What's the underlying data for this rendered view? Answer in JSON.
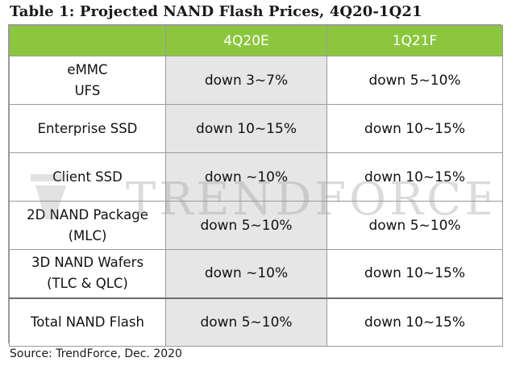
{
  "title": "Table 1: Projected NAND Flash Prices, 4Q20-1Q21",
  "table": {
    "headers": [
      "",
      "4Q20E",
      "1Q21F"
    ],
    "rows": [
      {
        "label_lines": [
          "eMMC",
          "UFS"
        ],
        "q4": "down 3~7%",
        "q1": "down 5~10%"
      },
      {
        "label_lines": [
          "Enterprise SSD"
        ],
        "q4": "down 10~15%",
        "q1": "down 10~15%"
      },
      {
        "label_lines": [
          "Client SSD"
        ],
        "q4": "down ~10%",
        "q1": "down 10~15%"
      },
      {
        "label_lines": [
          "2D NAND Package",
          "(MLC)"
        ],
        "q4": "down 5~10%",
        "q1": "down 5~10%"
      },
      {
        "label_lines": [
          "3D NAND Wafers",
          "(TLC & QLC)"
        ],
        "q4": "down ~10%",
        "q1": "down 10~15%"
      },
      {
        "label_lines": [
          "Total NAND Flash"
        ],
        "q4": "down 5~10%",
        "q1": "down 10~15%"
      }
    ]
  },
  "watermark": {
    "text": "TRENDFORCE"
  },
  "source": "Source: TrendForce, Dec. 2020",
  "colors": {
    "header_bg": "#8cc63f",
    "header_text": "#ffffff",
    "shaded_column": "#e6e6e6",
    "border": "#9a9a9a"
  }
}
